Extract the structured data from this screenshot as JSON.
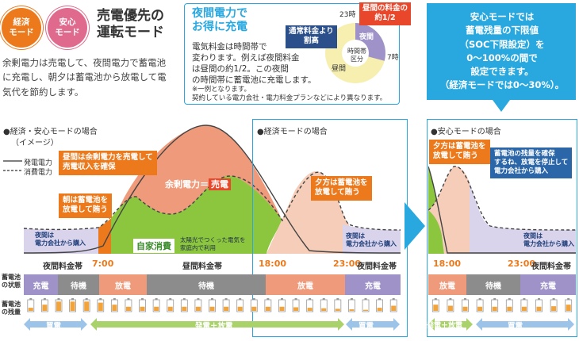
{
  "header": {
    "badge_eco": "経済\nモード",
    "badge_safe": "安心\nモード",
    "title": "売電優先の\n運転モード",
    "description": "余剰電力は売電して、夜間電力で蓄電池\nに充電し、朝夕は蓄電池から放電して電\n気代を節約します。"
  },
  "night_box": {
    "title": "夜間電力で\nお得に充電",
    "body": "電気料金は時間帯で\n変わります。例えば夜間料金\nは昼間の約1/2。この夜間\nの時間帯に蓄電池に充電します。",
    "note": "※一例となります。\n契約している電力会社・電力料金プランなどにより異なります。",
    "pie_labels": {
      "h23": "23時",
      "h7": "7時",
      "night": "夜間",
      "day": "昼間",
      "center": "時間帯\n区分"
    },
    "callout_normal": "通常料金より\n割高",
    "callout_night": "昼間の料金の\n約1/2"
  },
  "right_info": "安心モードでは\n蓄電残量の下限値\n（SOC下限設定）を\n0～100%の間で\n設定できます。\n（経済モードでは0～30%）。",
  "main": {
    "section_label": "●経済・安心モードの場合",
    "image_label": "（イメージ）",
    "legend_gen": "発電電力",
    "legend_use": "消費電力",
    "eco_label": "●経済モードの場合",
    "cap_day_sell": "昼間は余剰電力を売電して\n売電収入を確保",
    "cap_morning": "朝は蓄電池を\n放電して賄う",
    "cap_evening": "夕方は蓄電池を\n放電して賄う",
    "surplus": "余剰電力＝",
    "sell": "売電",
    "self_use": "自家消費",
    "solar_home": "太陽光でつくった電気を\n家庭内で利用",
    "night_buy_left": "夜間は\n電力会社から購入",
    "night_buy_right": "夜間は\n電力会社から購入",
    "time_night": "夜間料金帯",
    "time_700": "7:00",
    "time_day": "昼間料金帯",
    "time_1800": "18:00",
    "time_2300": "23:00",
    "time_night2": "夜間料金帯",
    "battery_state_label": "蓄電池\nの状態",
    "battery_level_label": "蓄電池\nの残量",
    "states": [
      "充電",
      "待機",
      "放電",
      "待機",
      "放電",
      "充電"
    ],
    "buy_left": "買電",
    "gen_discharge": "発電＋放電",
    "buy_right": "買電"
  },
  "safe": {
    "label": "●安心モードの場合",
    "cap_evening": "夕方は蓄電池を\n放電して賄う",
    "cap_keep": "蓄電池の残量を確保\nするね、放電を停止して\n電力会社から購入",
    "night_buy": "夜間は\n電力会社から購入",
    "time_1800": "18:00",
    "time_2300": "23:00",
    "time_night": "夜間料金帯",
    "states": [
      "放電",
      "待機",
      "充電"
    ],
    "gen_discharge": "発電＋放電",
    "buy": "買電"
  },
  "colors": {
    "eco_badge": "#ec7a1c",
    "safe_badge": "#e06a8d",
    "blue": "#29a8e0",
    "orange": "#ec7a1c",
    "salmon": "#ef9a7a",
    "green": "#8cc63f",
    "purple": "#9e92c8",
    "peach": "#f5cdb8",
    "lavender": "#d9d3ec",
    "gray": "#8c8c8c"
  }
}
